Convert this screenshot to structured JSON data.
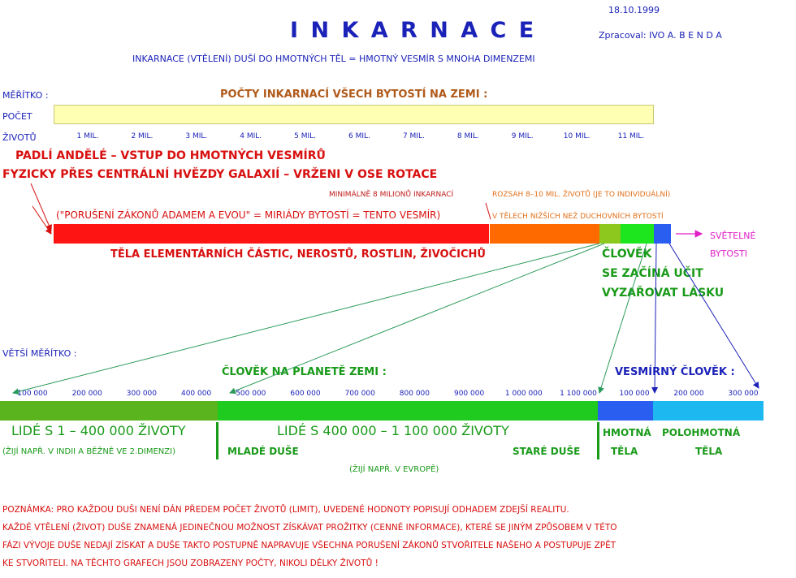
{
  "header": {
    "date": "18.10.1999",
    "title": "I N K A R N A C E",
    "author": "Zpracoval:  IVO A. B E N D A",
    "subtitle": "INKARNACE (VTĚLENÍ) DUŠÍ DO HMOTNÝCH TĚL = HMOTNÝ VESMÍR S MNOHA DIMENZEMI"
  },
  "scale1": {
    "label": "MĚŘÍTKO :",
    "heading": "POČTY INKARNACÍ VŠECH BYTOSTÍ NA ZEMI :",
    "row_label_1": "POČET",
    "row_label_2": "ŽIVOTŮ",
    "ticks": [
      "1 MIL.",
      "2 MIL.",
      "3 MIL.",
      "4 MIL.",
      "5 MIL.",
      "6 MIL.",
      "7 MIL.",
      "8 MIL.",
      "9 MIL.",
      "10 MIL.",
      "11 MIL."
    ],
    "fallen_1": "PADLÍ ANDĚLÉ – VSTUP DO HMOTNÝCH VESMÍRŮ",
    "fallen_2": "FYZICKY PŘES CENTRÁLNÍ HVĚZDY GALAXIÍ – VRŽENI V OSE ROTACE",
    "min_note": "MINIMÁLNĚ 8 MILIONŮ INKARNACÍ",
    "range_note": "ROZSAH 8–10 MIL. ŽIVOTŮ (JE TO INDIVIDUÁLNÍ)",
    "violation_note": "(\"PORUŠENÍ ZÁKONŮ ADAMEM A EVOU\" = MIRIÁDY BYTOSTÍ = TENTO VESMÍR)",
    "lower_bodies_note": "V TĚLECH NIŽŠÍCH NEŽ DUCHOVNÍCH BYTOSTÍ",
    "light_1": "SVĚTELNÉ",
    "light_2": "BYTOSTI",
    "bodies_note": "TĚLA ELEMENTÁRNÍCH ČÁSTIC, NEROSTŮ, ROSTLIN, ŽIVOČICHŮ",
    "human_1": "ČLOVĚK",
    "human_2": "SE ZAČÍNÁ UČIT",
    "human_3": "VYZAŘOVAT LÁSKU"
  },
  "scale2": {
    "label": "VĚTŠÍ MĚŘÍTKO :",
    "heading_earth": "ČLOVĚK NA PLANETĚ ZEMI :",
    "heading_cosmic": "VESMÍRNÝ ČLOVĚK :",
    "ticks_left": [
      "100 000",
      "200 000",
      "300 000",
      "400 000",
      "500 000",
      "600 000",
      "700 000",
      "800 000",
      "900 000",
      "1 000 000",
      "1 100 000"
    ],
    "ticks_right": [
      "100 000",
      "200 000",
      "300 000"
    ],
    "people_1": "LIDÉ S 1 – 400 000 ŽIVOTY",
    "people_1_note": "(ŽIJÍ NAPŘ. V INDII A BĚŽNĚ VE 2.DIMENZI)",
    "people_2": "LIDÉ S 400 000 – 1 100 000 ŽIVOTY",
    "young": "MLADÉ DUŠE",
    "old": "STARÉ DUŠE",
    "people_2_note": "(ŽIJÍ NAPŘ. V EVROPĚ)",
    "material_1": "HMOTNÁ",
    "material_2": "TĚLA",
    "semi_1": "POLOHMOTNÁ",
    "semi_2": "TĚLA"
  },
  "notes": [
    "POZNÁMKA: PRO KAŽDOU DUŠI NENÍ DÁN PŘEDEM POČET ŽIVOTŮ (LIMIT), UVEDENÉ HODNOTY POPISUJÍ ODHADEM ZDEJŠÍ REALITU.",
    "KAŽDÉ VTĚLENÍ (ŽIVOT) DUŠE ZNAMENÁ JEDINEČNOU MOŽNOST ZÍSKÁVAT PROŽITKY (CENNÉ INFORMACE), KTERÉ SE JINÝM ZPŮSOBEM V TÉTO",
    "FÁZI VÝVOJE DUŠE NEDAJÍ ZÍSKAT A DUŠE TAKTO POSTUPNĚ NAPRAVUJE VŠECHNA PORUŠENÍ ZÁKONŮ STVOŘITELE NAŠEHO A POSTUPUJE ZPĚT",
    "KE STVOŘITELI. NA TĚCHTO GRAFECH JSOU ZOBRAZENY POČTY, NIKOLI DÉLKY ŽIVOTŮ !"
  ],
  "colors": {
    "yellow_bar": "#ffffb4",
    "red": "#ff1414",
    "orange": "#ff6a00",
    "olive_green": "#8cc81e",
    "green": "#1ee61e",
    "blue": "#2a5ef0",
    "cyan": "#1eb8f0",
    "mid_green": "#1ecb1e",
    "grass_green": "#5ab41e"
  }
}
